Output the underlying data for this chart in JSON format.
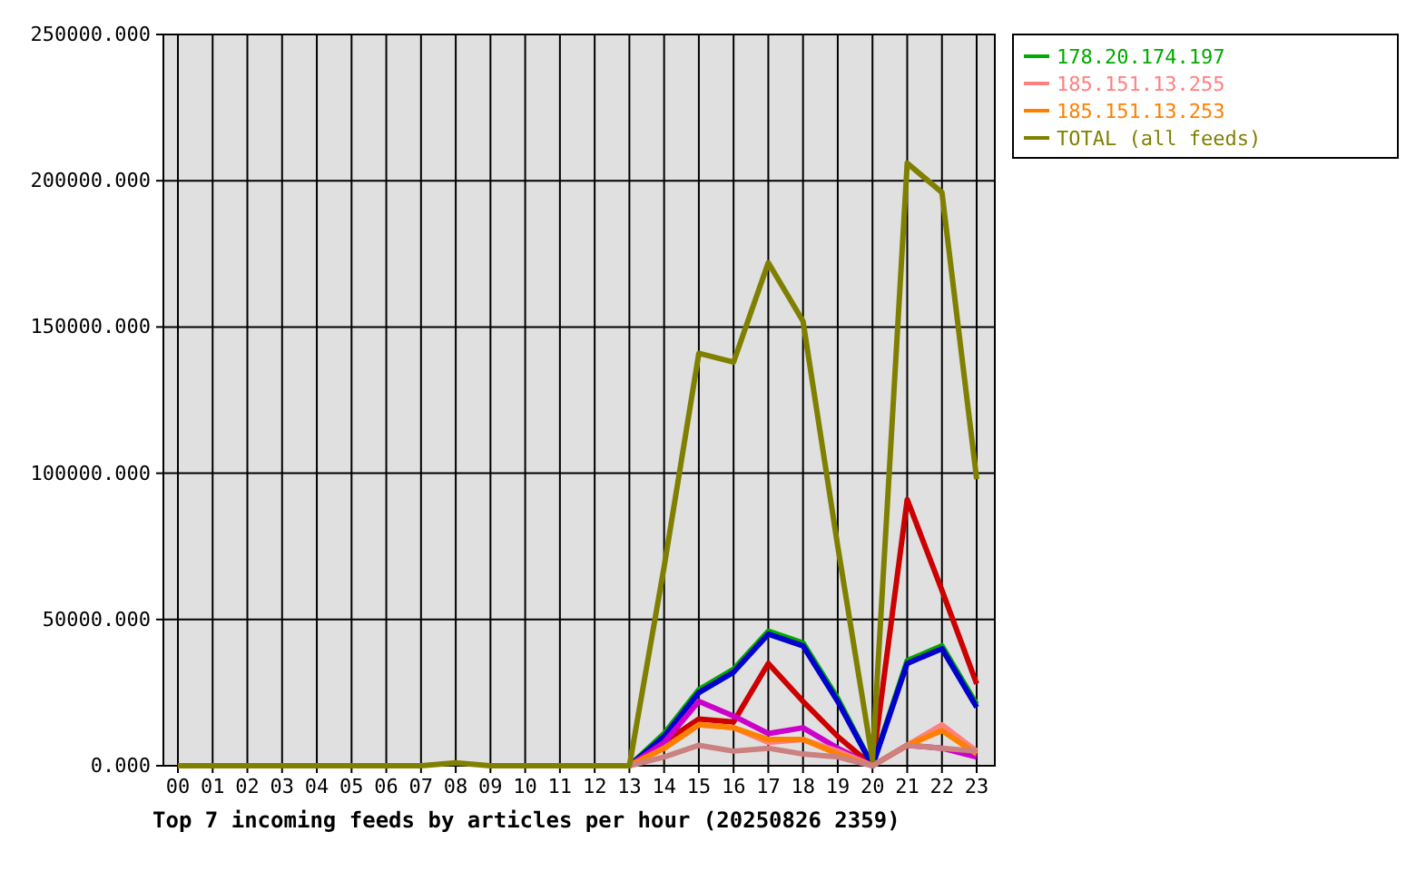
{
  "chart_data": {
    "type": "line",
    "title": "Top 7 incoming feeds by articles per hour (20250826 2359)",
    "categories": [
      "00",
      "01",
      "02",
      "03",
      "04",
      "05",
      "06",
      "07",
      "08",
      "09",
      "10",
      "11",
      "12",
      "13",
      "14",
      "15",
      "16",
      "17",
      "18",
      "19",
      "20",
      "21",
      "22",
      "23"
    ],
    "ylim": [
      0,
      250000
    ],
    "yticks": [
      {
        "value": 0,
        "label": "0.000"
      },
      {
        "value": 50000,
        "label": "50000.000"
      },
      {
        "value": 100000,
        "label": "100000.000"
      },
      {
        "value": 150000,
        "label": "150000.000"
      },
      {
        "value": 200000,
        "label": "200000.000"
      },
      {
        "value": 250000,
        "label": "250000.000"
      }
    ],
    "grid": true,
    "legend": "right",
    "marker": "none",
    "line_style": "solid",
    "series": [
      {
        "color": "#cc0000",
        "values": [
          null,
          null,
          null,
          null,
          null,
          null,
          null,
          null,
          null,
          null,
          null,
          null,
          null,
          0,
          8000,
          16000,
          15000,
          35000,
          22000,
          10000,
          0,
          91000,
          60000,
          28000
        ]
      },
      {
        "name": "178.20.174.197",
        "color": "#00aa00",
        "values": [
          null,
          null,
          null,
          null,
          null,
          null,
          null,
          null,
          null,
          null,
          null,
          null,
          null,
          0,
          11000,
          26000,
          33000,
          46000,
          42000,
          23000,
          0,
          36000,
          41000,
          21000
        ]
      },
      {
        "color": "#0000cc",
        "values": [
          null,
          null,
          null,
          null,
          null,
          null,
          null,
          null,
          null,
          null,
          null,
          null,
          null,
          0,
          10000,
          25000,
          32000,
          45000,
          41000,
          22000,
          0,
          35000,
          40000,
          20000
        ]
      },
      {
        "color": "#cc00cc",
        "values": [
          null,
          null,
          null,
          null,
          null,
          null,
          null,
          null,
          null,
          null,
          null,
          null,
          null,
          0,
          8000,
          22000,
          17000,
          11000,
          13000,
          6000,
          0,
          7000,
          6000,
          3000
        ]
      },
      {
        "name": "185.151.13.255",
        "color": "#ff8080",
        "values": [
          null,
          null,
          null,
          null,
          null,
          null,
          null,
          null,
          null,
          null,
          null,
          null,
          null,
          0,
          6000,
          14000,
          13000,
          8000,
          9000,
          5000,
          0,
          7000,
          14000,
          5000
        ]
      },
      {
        "name": "185.151.13.253",
        "color": "#ff8000",
        "values": [
          null,
          null,
          null,
          null,
          null,
          null,
          null,
          null,
          null,
          null,
          null,
          null,
          null,
          0,
          6000,
          14000,
          13000,
          9000,
          9000,
          4000,
          0,
          7000,
          12000,
          4000
        ]
      },
      {
        "color": "#cc8080",
        "values": [
          null,
          null,
          null,
          null,
          null,
          null,
          null,
          null,
          null,
          null,
          null,
          null,
          null,
          0,
          3000,
          7000,
          5000,
          6000,
          4000,
          3000,
          0,
          7000,
          6000,
          5000
        ]
      },
      {
        "name": "TOTAL (all feeds)",
        "color": "#808000",
        "values": [
          0,
          0,
          0,
          0,
          0,
          0,
          0,
          0,
          1000,
          0,
          0,
          0,
          0,
          0,
          68000,
          141000,
          138000,
          172000,
          152000,
          75000,
          2000,
          206000,
          196000,
          98000
        ]
      }
    ]
  }
}
